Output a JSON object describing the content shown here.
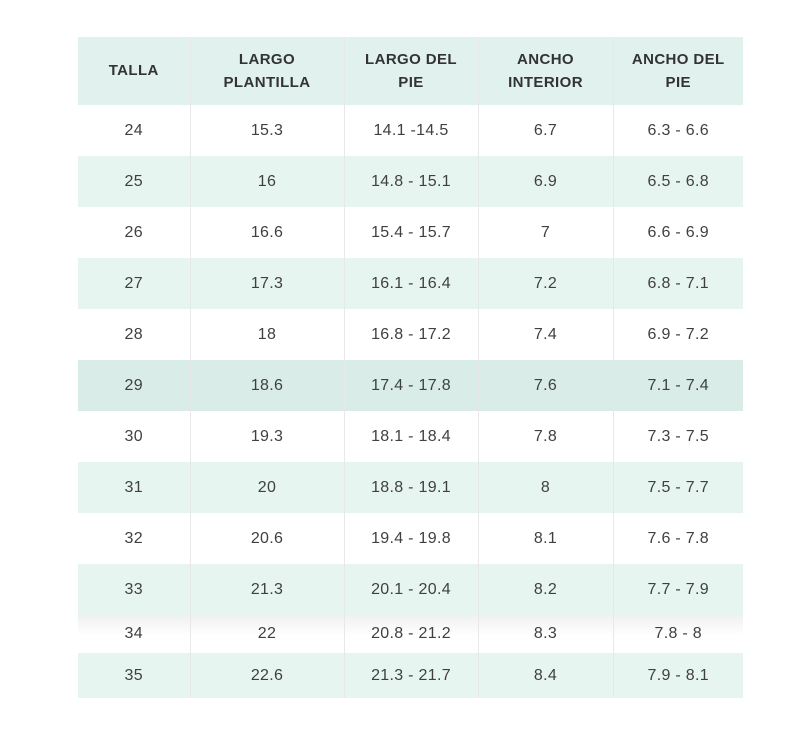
{
  "colors": {
    "header_bg": "#e1f1ed",
    "header_text": "#333333",
    "cell_text": "#404040",
    "row_plain": "#ffffff",
    "row_stripe": "#e7f5f1",
    "row_highlight": "#d9ece8",
    "divider": "#e8e8e8",
    "page_bg": "#ffffff"
  },
  "table": {
    "columns": [
      {
        "key": "talla",
        "label": "TALLA"
      },
      {
        "key": "largo_plantilla",
        "label": "LARGO\nPLANTILLA"
      },
      {
        "key": "largo_del_pie",
        "label": "LARGO DEL\nPIE"
      },
      {
        "key": "ancho_interior",
        "label": "ANCHO\nINTERIOR"
      },
      {
        "key": "ancho_del_pie",
        "label": "ANCHO DEL\nPIE"
      }
    ],
    "highlight_row_index": 5
  },
  "chart_data": {
    "type": "table",
    "title": "",
    "columns": [
      "TALLA",
      "LARGO PLANTILLA",
      "LARGO DEL PIE",
      "ANCHO INTERIOR",
      "ANCHO DEL PIE"
    ],
    "rows": [
      [
        "24",
        "15.3",
        "14.1 -14.5",
        "6.7",
        "6.3 - 6.6"
      ],
      [
        "25",
        "16",
        "14.8 - 15.1",
        "6.9",
        "6.5 - 6.8"
      ],
      [
        "26",
        "16.6",
        "15.4 - 15.7",
        "7",
        "6.6 - 6.9"
      ],
      [
        "27",
        "17.3",
        "16.1 - 16.4",
        "7.2",
        "6.8 - 7.1"
      ],
      [
        "28",
        "18",
        "16.8 - 17.2",
        "7.4",
        "6.9 - 7.2"
      ],
      [
        "29",
        "18.6",
        "17.4 - 17.8",
        "7.6",
        "7.1 - 7.4"
      ],
      [
        "30",
        "19.3",
        "18.1 - 18.4",
        "7.8",
        "7.3 - 7.5"
      ],
      [
        "31",
        "20",
        "18.8 - 19.1",
        "8",
        "7.5 - 7.7"
      ],
      [
        "32",
        "20.6",
        "19.4 - 19.8",
        "8.1",
        "7.6 - 7.8"
      ],
      [
        "33",
        "21.3",
        "20.1 - 20.4",
        "8.2",
        "7.7 - 7.9"
      ],
      [
        "34",
        "22",
        "20.8 - 21.2",
        "8.3",
        "7.8 - 8"
      ],
      [
        "35",
        "22.6",
        "21.3 - 21.7",
        "8.4",
        "7.9 - 8.1"
      ]
    ]
  }
}
